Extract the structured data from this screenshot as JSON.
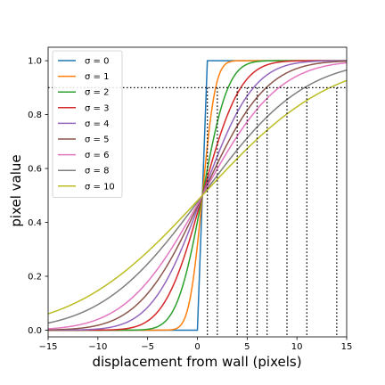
{
  "chart_data": {
    "type": "line",
    "xlabel": "displacement from wall (pixels)",
    "ylabel": "pixel value",
    "xlim": [
      -15,
      15
    ],
    "ylim": [
      -0.025,
      1.05
    ],
    "x_ticks": [
      -15,
      -10,
      -5,
      0,
      5,
      10,
      15
    ],
    "x_tick_labels": [
      "−15",
      "−10",
      "−5",
      "0",
      "5",
      "10",
      "15"
    ],
    "y_ticks": [
      0.0,
      0.2,
      0.4,
      0.6,
      0.8,
      1.0
    ],
    "y_tick_labels": [
      "0.0",
      "0.2",
      "0.4",
      "0.6",
      "0.8",
      "1.0"
    ],
    "grid": false,
    "legend_position": "top-left",
    "series": [
      {
        "name": "σ = 0",
        "sigma": 0,
        "color": "#1f77b4"
      },
      {
        "name": "σ = 1",
        "sigma": 1,
        "color": "#ff7f0e"
      },
      {
        "name": "σ = 2",
        "sigma": 2,
        "color": "#2ca02c"
      },
      {
        "name": "σ = 3",
        "sigma": 3,
        "color": "#d62728"
      },
      {
        "name": "σ = 4",
        "sigma": 4,
        "color": "#9467bd"
      },
      {
        "name": "σ = 5",
        "sigma": 5,
        "color": "#8c564b"
      },
      {
        "name": "σ = 6",
        "sigma": 6,
        "color": "#e377c2"
      },
      {
        "name": "σ = 8",
        "sigma": 8,
        "color": "#7f7f7f"
      },
      {
        "name": "σ = 10",
        "sigma": 10,
        "color": "#bcbd22"
      }
    ],
    "threshold_line": {
      "y": 0.9,
      "style": "dotted",
      "color": "#000000"
    },
    "threshold_crossings_x": [
      1,
      2,
      4,
      5,
      6,
      7,
      9,
      11,
      14
    ]
  }
}
